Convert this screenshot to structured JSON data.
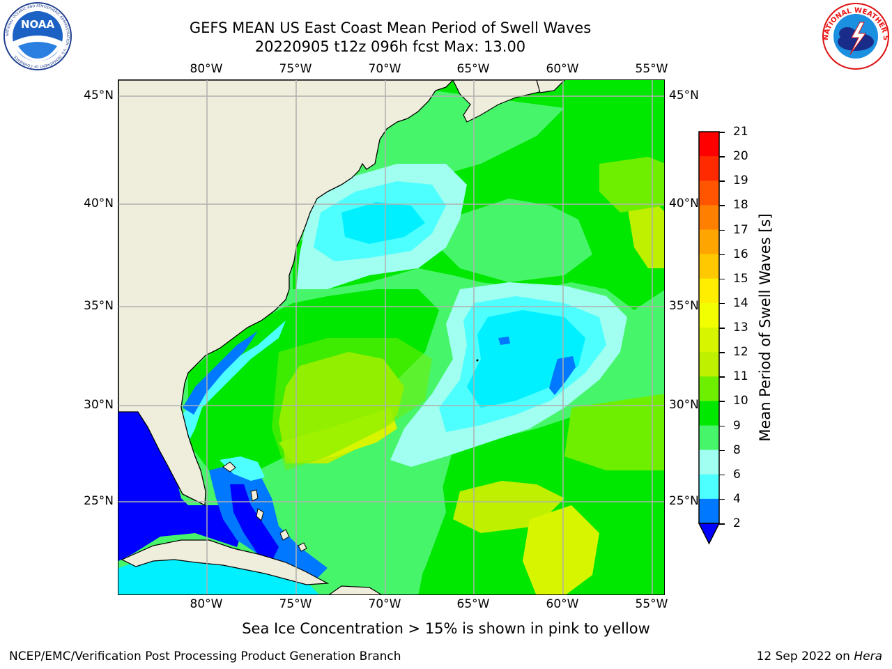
{
  "title_line1": "GEFS MEAN US East Coast Mean Period of Swell Waves",
  "title_line2": "20220905 t12z 096h fcst   Max: 13.00",
  "logos": {
    "noaa": "NOAA",
    "noaa_ring": "NATIONAL OCEANIC AND ATMOSPHERIC ADMINISTRATION · U.S. DEPARTMENT OF COMMERCE",
    "nws_ring": "NATIONAL WEATHER SERVICE"
  },
  "map": {
    "lon_labels": [
      "80°W",
      "75°W",
      "70°W",
      "65°W",
      "60°W",
      "55°W"
    ],
    "lat_labels": [
      "45°N",
      "40°N",
      "35°N",
      "30°N",
      "25°N"
    ],
    "land_color": "#efeddb",
    "coast_color": "#000000",
    "grid_color": "#b0b0b0"
  },
  "colorbar": {
    "label": "Mean Period of Swell Waves [s]",
    "ticks": [
      "21",
      "20",
      "19",
      "18",
      "17",
      "16",
      "15",
      "14",
      "13",
      "12",
      "11",
      "10",
      "9",
      "8",
      "6",
      "4",
      "2"
    ],
    "colors": [
      "#ff0000",
      "#ff2a00",
      "#ff5500",
      "#ff7f00",
      "#ffa500",
      "#ffc800",
      "#ffee00",
      "#f2ff00",
      "#d8f500",
      "#bff000",
      "#6fef00",
      "#00e800",
      "#47f56a",
      "#a0fff0",
      "#4dffff",
      "#00f0ff",
      "#0078ff"
    ],
    "extend_color": "#0000ff"
  },
  "footnote": "Sea Ice Concentration > 15% is shown in pink to yellow",
  "credit": "NCEP/EMC/Verification Post Processing Product Generation Branch",
  "stamp_date": "12 Sep 2022 on",
  "stamp_host": "Hera"
}
